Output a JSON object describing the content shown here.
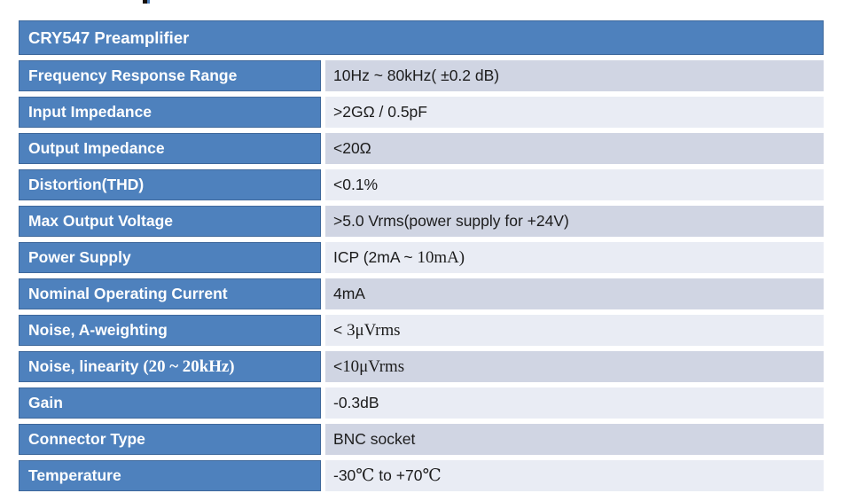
{
  "table": {
    "title": "CRY547 Preamplifier",
    "colors": {
      "header_bg": "#4e81bd",
      "label_bg": "#4e81bd",
      "border_accent": "#3e689b",
      "row_dark_bg": "#d0d5e3",
      "row_light_bg": "#e9ecf4",
      "label_text": "#ffffff",
      "value_text": "#1c1c1c"
    },
    "rows": [
      {
        "label": [
          {
            "t": "Frequency Response Range"
          }
        ],
        "value": [
          {
            "t": "10Hz ~ 80kHz( ±0.2 dB)"
          }
        ]
      },
      {
        "label": [
          {
            "t": "Input Impedance"
          }
        ],
        "value": [
          {
            "t": ">2GΩ / 0.5pF"
          }
        ]
      },
      {
        "label": [
          {
            "t": "Output Impedance"
          }
        ],
        "value": [
          {
            "t": "<20Ω"
          }
        ]
      },
      {
        "label": [
          {
            "t": "Distortion(THD)"
          }
        ],
        "value": [
          {
            "t": "<0.1%"
          }
        ]
      },
      {
        "label": [
          {
            "t": "Max Output Voltage"
          }
        ],
        "value": [
          {
            "t": ">5.0 Vrms(power supply for +24V)"
          }
        ]
      },
      {
        "label": [
          {
            "t": "Power Supply"
          }
        ],
        "value": [
          {
            "t": "ICP (2mA ~ "
          },
          {
            "t": "10mA)",
            "serif": true
          }
        ]
      },
      {
        "label": [
          {
            "t": "Nominal Operating Current"
          }
        ],
        "value": [
          {
            "t": "4mA"
          }
        ]
      },
      {
        "label": [
          {
            "t": "Noise, A-weighting"
          }
        ],
        "value": [
          {
            "t": "< "
          },
          {
            "t": "3μVrms",
            "serif": true
          }
        ]
      },
      {
        "label": [
          {
            "t": "Noise, linearity "
          },
          {
            "t": "(20 ~ 20kHz)",
            "serif": true
          }
        ],
        "value": [
          {
            "t": "<"
          },
          {
            "t": "10μVrms",
            "serif": true
          }
        ]
      },
      {
        "label": [
          {
            "t": "Gain"
          }
        ],
        "value": [
          {
            "t": "-0.3dB"
          }
        ]
      },
      {
        "label": [
          {
            "t": "Connector Type"
          }
        ],
        "value": [
          {
            "t": "BNC socket"
          }
        ]
      },
      {
        "label": [
          {
            "t": "Temperature"
          }
        ],
        "value": [
          {
            "t": "-30"
          },
          {
            "t": "℃",
            "serif": true
          },
          {
            "t": " to +70"
          },
          {
            "t": "℃",
            "serif": true
          }
        ]
      }
    ]
  }
}
